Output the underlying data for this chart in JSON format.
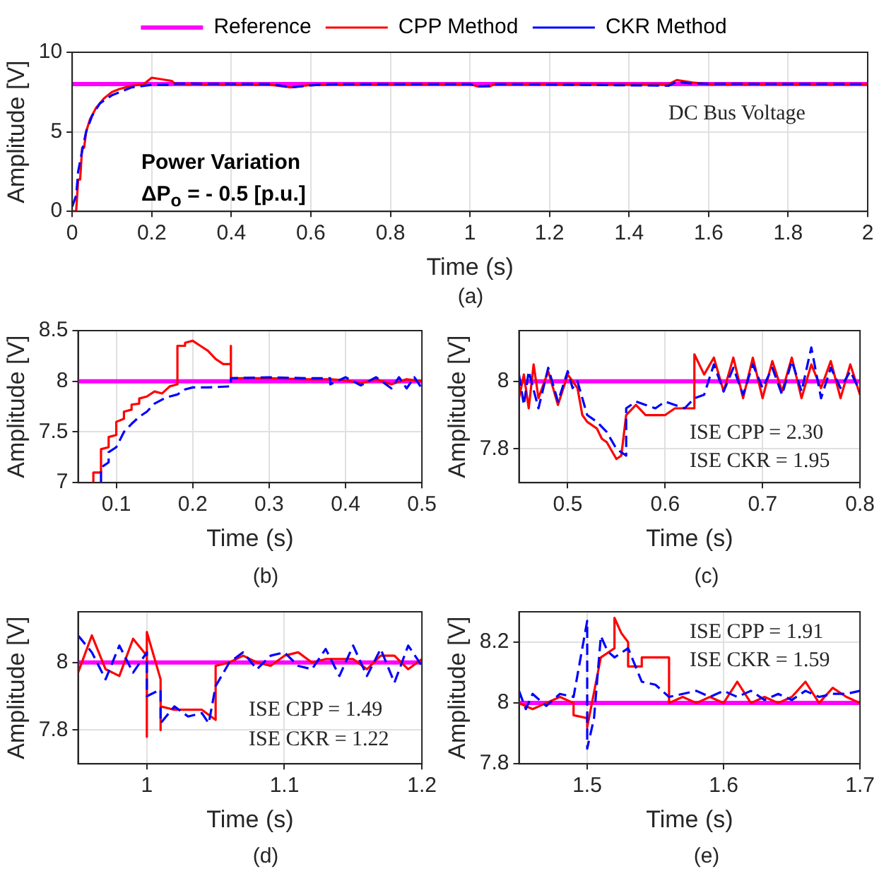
{
  "chart_data": [
    {
      "type": "line",
      "xlabel": "Time (s)",
      "ylabel": "Amplitude [V]",
      "xlim": [
        0,
        2
      ],
      "ylim": [
        0,
        10
      ],
      "xticks": [
        0,
        0.2,
        0.4,
        0.6,
        0.8,
        1,
        1.2,
        1.4,
        1.6,
        1.8,
        2
      ],
      "yticks": [
        0,
        5,
        10
      ],
      "grid": true,
      "legend": "top",
      "annotations": [
        "Power Variation",
        "ΔP$_{o}$ = - 0.5 [p.u.]",
        "DC Bus Voltage",
        "(a)"
      ],
      "series": [
        {
          "name": "Reference",
          "color": "#ff00ff",
          "x": [
            0,
            2
          ],
          "values": [
            8,
            8
          ]
        },
        {
          "name": "CPP Method",
          "color": "#ff0000",
          "line_style": "solid",
          "x": [
            0,
            0.01,
            0.015,
            0.02,
            0.025,
            0.03,
            0.035,
            0.045,
            0.06,
            0.08,
            0.1,
            0.12,
            0.15,
            0.18,
            0.2,
            0.25,
            0.26,
            0.5,
            0.55,
            0.6,
            0.8,
            1.0,
            1.02,
            1.05,
            1.06,
            1.5,
            1.52,
            1.56,
            1.6,
            2
          ],
          "values": [
            0,
            0,
            2,
            2,
            4,
            4,
            5,
            5.8,
            6.5,
            7.1,
            7.5,
            7.7,
            7.9,
            8,
            8.4,
            8.2,
            8,
            7.95,
            7.8,
            7.95,
            8,
            8,
            7.85,
            7.85,
            8,
            8,
            8.25,
            8.1,
            8,
            8
          ]
        },
        {
          "name": "CKR Method",
          "color": "#0000ff",
          "line_style": "dashed",
          "x": [
            0,
            0.01,
            0.015,
            0.025,
            0.035,
            0.05,
            0.07,
            0.1,
            0.15,
            0.2,
            0.25,
            0.26,
            0.5,
            0.55,
            0.6,
            0.65,
            1.0,
            1.02,
            1.05,
            1.06,
            1.5,
            1.52,
            1.55,
            1.6,
            2
          ],
          "values": [
            0.3,
            1,
            2.5,
            3.8,
            5,
            6,
            6.8,
            7.3,
            7.8,
            7.95,
            7.95,
            8.03,
            8,
            7.8,
            7.92,
            8,
            8,
            7.85,
            7.9,
            8,
            7.9,
            8.15,
            8.05,
            8.02,
            8
          ]
        }
      ]
    },
    {
      "type": "line",
      "xlabel": "Time (s)",
      "ylabel": "Amplitude [V]",
      "xlim": [
        0.05,
        0.5
      ],
      "ylim": [
        7,
        8.5
      ],
      "xticks": [
        0.1,
        0.2,
        0.3,
        0.4,
        0.5
      ],
      "yticks": [
        7,
        7.5,
        8,
        8.5
      ],
      "grid": true,
      "annotations": [
        "(b)"
      ],
      "series": [
        {
          "color": "#ff00ff",
          "x": [
            0.05,
            0.5
          ],
          "values": [
            8,
            8
          ]
        },
        {
          "color": "#ff0000",
          "line_style": "solid",
          "x": [
            0.07,
            0.07,
            0.08,
            0.08,
            0.09,
            0.09,
            0.1,
            0.1,
            0.11,
            0.11,
            0.12,
            0.12,
            0.13,
            0.13,
            0.14,
            0.15,
            0.16,
            0.17,
            0.18,
            0.18,
            0.19,
            0.19,
            0.2,
            0.21,
            0.22,
            0.23,
            0.24,
            0.25,
            0.25,
            0.25,
            0.3,
            0.35,
            0.38,
            0.4,
            0.42,
            0.44,
            0.46,
            0.48,
            0.5
          ],
          "values": [
            7,
            7.1,
            7.1,
            7.33,
            7.35,
            7.45,
            7.47,
            7.6,
            7.63,
            7.7,
            7.72,
            7.77,
            7.78,
            7.83,
            7.85,
            7.9,
            7.88,
            7.95,
            7.97,
            8.35,
            8.35,
            8.38,
            8.4,
            8.35,
            8.3,
            8.22,
            8.17,
            8.17,
            8.35,
            8.03,
            8.03,
            8.02,
            8.02,
            8.01,
            7.98,
            8.02,
            7.97,
            8.02,
            8.0
          ]
        },
        {
          "color": "#0000ff",
          "line_style": "dashed",
          "x": [
            0.08,
            0.08,
            0.09,
            0.09,
            0.1,
            0.11,
            0.12,
            0.13,
            0.14,
            0.15,
            0.16,
            0.17,
            0.18,
            0.19,
            0.2,
            0.22,
            0.25,
            0.25,
            0.3,
            0.35,
            0.38,
            0.38,
            0.4,
            0.42,
            0.44,
            0.46,
            0.47,
            0.48,
            0.49,
            0.5
          ],
          "values": [
            7,
            7.15,
            7.2,
            7.3,
            7.35,
            7.5,
            7.58,
            7.65,
            7.7,
            7.78,
            7.82,
            7.85,
            7.87,
            7.92,
            7.94,
            7.94,
            7.95,
            8.03,
            8.04,
            8.03,
            8.03,
            7.97,
            8.04,
            7.96,
            8.04,
            7.93,
            8.04,
            7.93,
            8.04,
            7.93
          ]
        }
      ]
    },
    {
      "type": "line",
      "xlabel": "Time (s)",
      "ylabel": "Amplitude [V]",
      "xlim": [
        0.45,
        0.8
      ],
      "ylim": [
        7.7,
        8.15
      ],
      "xticks": [
        0.5,
        0.6,
        0.7,
        0.8
      ],
      "yticks": [
        7.8,
        8
      ],
      "grid": true,
      "annotations": [
        "ISE CPP = 2.30",
        "ISE CKR = 1.95",
        "(c)"
      ],
      "series": [
        {
          "color": "#ff00ff",
          "x": [
            0.45,
            0.8
          ],
          "values": [
            8,
            8
          ]
        },
        {
          "color": "#ff0000",
          "line_style": "solid",
          "x": [
            0.45,
            0.455,
            0.46,
            0.465,
            0.47,
            0.48,
            0.49,
            0.5,
            0.51,
            0.515,
            0.52,
            0.53,
            0.535,
            0.54,
            0.55,
            0.555,
            0.56,
            0.57,
            0.58,
            0.6,
            0.61,
            0.63,
            0.63,
            0.64,
            0.65,
            0.66,
            0.67,
            0.68,
            0.69,
            0.7,
            0.71,
            0.72,
            0.73,
            0.74,
            0.75,
            0.76,
            0.77,
            0.78,
            0.79,
            0.8
          ],
          "values": [
            7.95,
            8.02,
            7.92,
            8.05,
            7.95,
            8.03,
            7.93,
            8.02,
            7.98,
            7.9,
            7.88,
            7.86,
            7.83,
            7.82,
            7.77,
            7.78,
            7.9,
            7.93,
            7.9,
            7.9,
            7.92,
            7.92,
            8.08,
            8.02,
            8.07,
            7.97,
            8.07,
            7.95,
            8.07,
            7.95,
            8.06,
            7.97,
            8.07,
            7.95,
            8.05,
            7.98,
            8.06,
            7.95,
            8.05,
            7.96
          ]
        },
        {
          "color": "#0000ff",
          "line_style": "dashed",
          "x": [
            0.45,
            0.455,
            0.46,
            0.47,
            0.48,
            0.49,
            0.5,
            0.505,
            0.51,
            0.52,
            0.53,
            0.54,
            0.55,
            0.56,
            0.56,
            0.57,
            0.58,
            0.59,
            0.6,
            0.61,
            0.62,
            0.63,
            0.64,
            0.65,
            0.66,
            0.67,
            0.68,
            0.69,
            0.7,
            0.71,
            0.72,
            0.73,
            0.74,
            0.75,
            0.76,
            0.77,
            0.78,
            0.79,
            0.8
          ],
          "values": [
            8.02,
            7.93,
            8.03,
            7.92,
            8.04,
            7.94,
            8.03,
            7.98,
            8.0,
            7.9,
            7.88,
            7.85,
            7.8,
            7.78,
            7.92,
            7.94,
            7.93,
            7.92,
            7.94,
            7.93,
            7.92,
            7.95,
            7.96,
            8.05,
            7.97,
            8.04,
            7.96,
            8.05,
            7.98,
            8.04,
            7.96,
            8.06,
            7.97,
            8.1,
            7.95,
            8.04,
            7.98,
            8.03,
            7.97
          ]
        }
      ]
    },
    {
      "type": "line",
      "xlabel": "Time (s)",
      "ylabel": "Amplitude [V]",
      "xlim": [
        0.95,
        1.2
      ],
      "ylim": [
        7.7,
        8.15
      ],
      "xticks": [
        1,
        1.1,
        1.2
      ],
      "yticks": [
        7.8,
        8
      ],
      "grid": true,
      "annotations": [
        "ISE CPP = 1.49",
        "ISE CKR = 1.22",
        "(d)"
      ],
      "series": [
        {
          "color": "#ff00ff",
          "x": [
            0.95,
            1.2
          ],
          "values": [
            8,
            8
          ]
        },
        {
          "color": "#ff0000",
          "line_style": "solid",
          "x": [
            0.95,
            0.96,
            0.97,
            0.98,
            0.99,
            1.0,
            1.0,
            1.0,
            1.01,
            1.01,
            1.01,
            1.02,
            1.03,
            1.04,
            1.05,
            1.05,
            1.06,
            1.07,
            1.08,
            1.09,
            1.1,
            1.11,
            1.12,
            1.13,
            1.14,
            1.15,
            1.16,
            1.17,
            1.18,
            1.19,
            1.2
          ],
          "values": [
            7.97,
            8.08,
            7.98,
            7.96,
            8.07,
            8.02,
            7.78,
            8.09,
            7.95,
            7.8,
            7.87,
            7.86,
            7.86,
            7.86,
            7.83,
            7.99,
            8.0,
            8.02,
            8.0,
            7.99,
            8.02,
            8.03,
            8.0,
            8.01,
            8.01,
            8.01,
            7.98,
            8.02,
            8.02,
            7.98,
            8.01
          ]
        },
        {
          "color": "#0000ff",
          "line_style": "dashed",
          "x": [
            0.95,
            0.96,
            0.97,
            0.98,
            0.99,
            1.0,
            1.0,
            1.01,
            1.01,
            1.02,
            1.03,
            1.04,
            1.045,
            1.05,
            1.06,
            1.07,
            1.08,
            1.09,
            1.1,
            1.11,
            1.12,
            1.13,
            1.14,
            1.15,
            1.16,
            1.17,
            1.18,
            1.19,
            1.2
          ],
          "values": [
            8.08,
            8.03,
            7.95,
            8.05,
            7.97,
            8.03,
            7.9,
            7.92,
            7.82,
            7.87,
            7.84,
            7.85,
            7.82,
            7.93,
            8.0,
            8.03,
            7.98,
            8.02,
            8.03,
            7.99,
            7.98,
            8.04,
            7.96,
            8.05,
            7.96,
            8.04,
            7.94,
            8.05,
            7.99
          ]
        }
      ]
    },
    {
      "type": "line",
      "xlabel": "Time (s)",
      "ylabel": "Amplitude [V]",
      "xlim": [
        1.45,
        1.7
      ],
      "ylim": [
        7.8,
        8.3
      ],
      "xticks": [
        1.5,
        1.6,
        1.7
      ],
      "yticks": [
        7.8,
        8,
        8.2
      ],
      "grid": true,
      "annotations": [
        "ISE CPP = 1.91",
        "ISE CKR = 1.59",
        "(e)"
      ],
      "series": [
        {
          "color": "#ff00ff",
          "x": [
            1.45,
            1.7
          ],
          "values": [
            8,
            8
          ]
        },
        {
          "color": "#ff0000",
          "line_style": "solid",
          "x": [
            1.45,
            1.46,
            1.47,
            1.48,
            1.49,
            1.49,
            1.5,
            1.5,
            1.51,
            1.52,
            1.52,
            1.525,
            1.53,
            1.53,
            1.54,
            1.54,
            1.55,
            1.56,
            1.56,
            1.57,
            1.58,
            1.59,
            1.6,
            1.61,
            1.62,
            1.63,
            1.64,
            1.65,
            1.66,
            1.67,
            1.68,
            1.69,
            1.7
          ],
          "values": [
            8,
            7.98,
            8.0,
            8.02,
            8.0,
            7.96,
            7.95,
            7.92,
            8.15,
            8.18,
            8.28,
            8.23,
            8.2,
            8.12,
            8.12,
            8.15,
            8.15,
            8.15,
            8.0,
            8.02,
            8.0,
            8.02,
            8.0,
            8.07,
            8.0,
            8.02,
            8.0,
            8.02,
            8.07,
            8.0,
            8.05,
            8.02,
            8.0
          ]
        },
        {
          "color": "#0000ff",
          "line_style": "dashed",
          "x": [
            1.45,
            1.455,
            1.46,
            1.47,
            1.48,
            1.49,
            1.5,
            1.5,
            1.505,
            1.51,
            1.515,
            1.52,
            1.53,
            1.54,
            1.55,
            1.56,
            1.57,
            1.58,
            1.59,
            1.6,
            1.61,
            1.62,
            1.63,
            1.64,
            1.65,
            1.66,
            1.67,
            1.68,
            1.69,
            1.7
          ],
          "values": [
            8.04,
            7.98,
            8.03,
            7.99,
            8.03,
            8.02,
            8.27,
            7.85,
            7.95,
            8.22,
            8.17,
            8.15,
            8.18,
            8.07,
            8.06,
            8.02,
            8.03,
            8.04,
            8.02,
            8.04,
            8.02,
            8.04,
            8.01,
            8.03,
            8.01,
            8.04,
            8.02,
            8.03,
            8.03,
            8.04
          ]
        }
      ]
    }
  ]
}
